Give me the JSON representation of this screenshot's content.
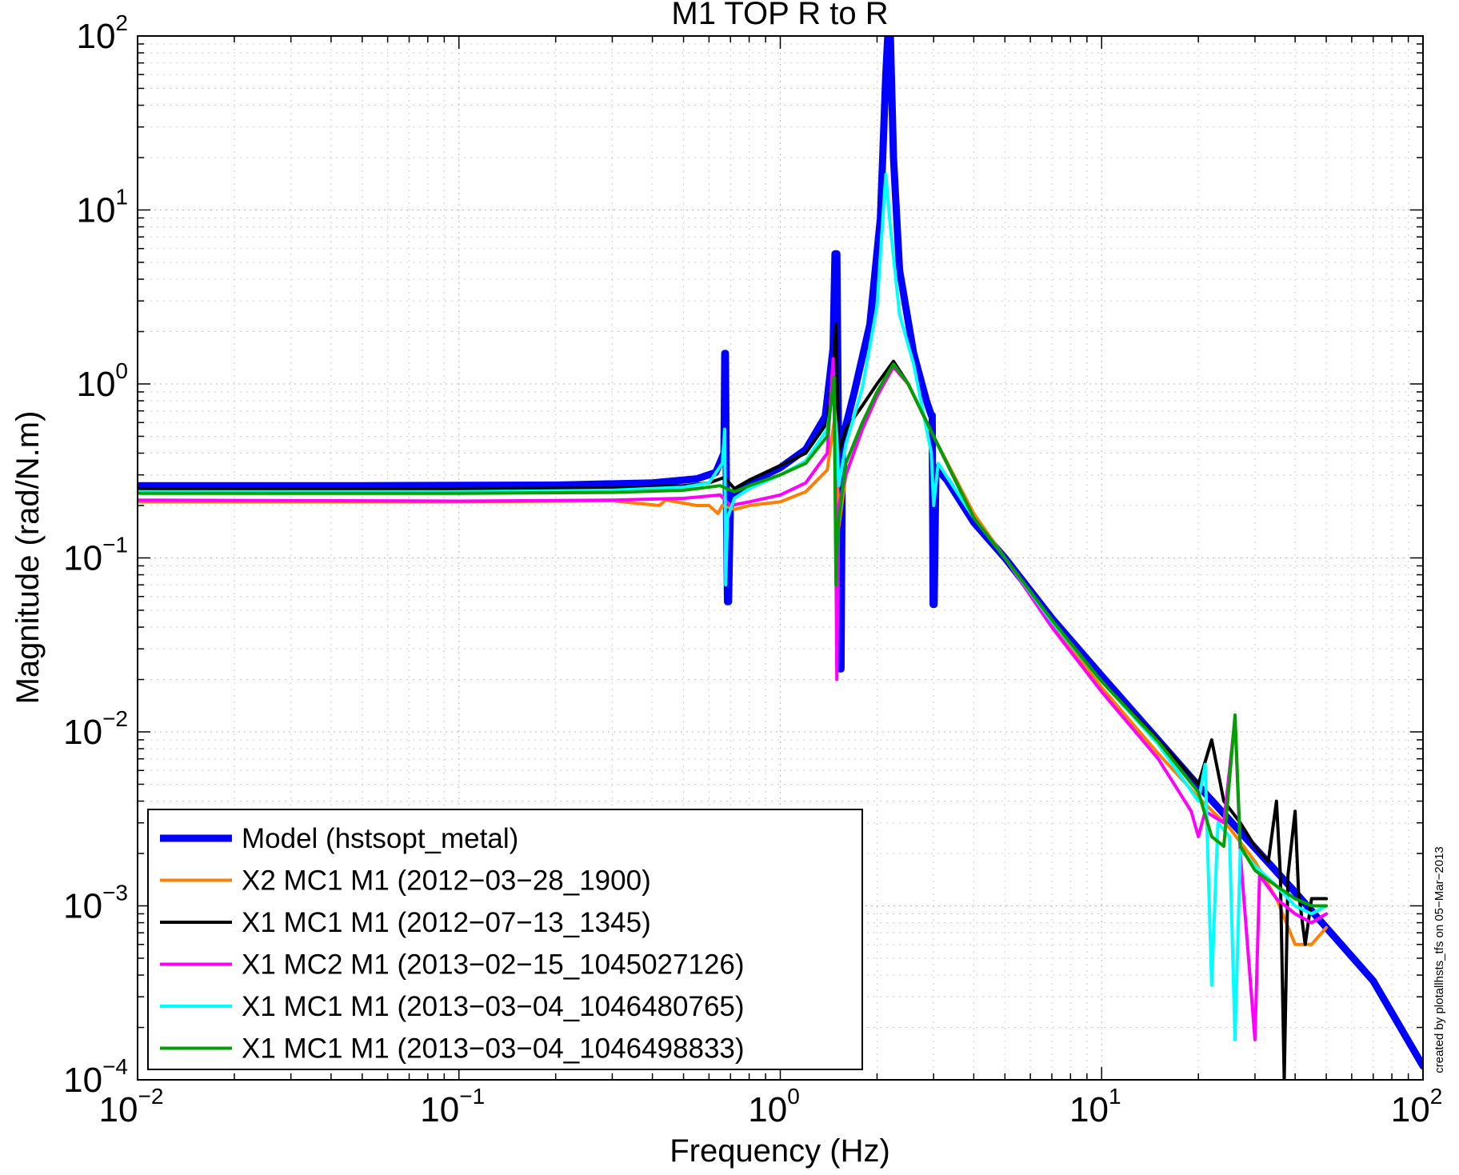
{
  "chart_data": {
    "type": "line",
    "title": "M1 TOP R to R",
    "xlabel": "Frequency (Hz)",
    "ylabel": "Magnitude (rad/N.m)",
    "xscale": "log",
    "yscale": "log",
    "xlim": [
      0.01,
      100
    ],
    "ylim": [
      0.0001,
      100
    ],
    "grid": true,
    "legend_position": "bottom-left",
    "credit": "created by plotallhsts_tfs on 05−Mar−2013",
    "x_ticks": [
      {
        "base": "10",
        "exp": "−2",
        "value": 0.01
      },
      {
        "base": "10",
        "exp": "−1",
        "value": 0.1
      },
      {
        "base": "10",
        "exp": "0",
        "value": 1
      },
      {
        "base": "10",
        "exp": "1",
        "value": 10
      },
      {
        "base": "10",
        "exp": "2",
        "value": 100
      }
    ],
    "y_ticks": [
      {
        "base": "10",
        "exp": "−4",
        "value": 0.0001
      },
      {
        "base": "10",
        "exp": "−3",
        "value": 0.001
      },
      {
        "base": "10",
        "exp": "−2",
        "value": 0.01
      },
      {
        "base": "10",
        "exp": "−1",
        "value": 0.1
      },
      {
        "base": "10",
        "exp": "0",
        "value": 1
      },
      {
        "base": "10",
        "exp": "1",
        "value": 10
      },
      {
        "base": "10",
        "exp": "2",
        "value": 100
      }
    ],
    "series": [
      {
        "name": "Model (hstsopt_metal)",
        "color": "#0000ff",
        "line_width": "thick",
        "points": [
          [
            0.01,
            0.26
          ],
          [
            0.05,
            0.26
          ],
          [
            0.2,
            0.262
          ],
          [
            0.4,
            0.27
          ],
          [
            0.55,
            0.285
          ],
          [
            0.63,
            0.31
          ],
          [
            0.668,
            0.4
          ],
          [
            0.672,
            1.5
          ],
          [
            0.675,
            1.5
          ],
          [
            0.68,
            0.2
          ],
          [
            0.685,
            0.056
          ],
          [
            0.69,
            0.056
          ],
          [
            0.7,
            0.23
          ],
          [
            0.8,
            0.27
          ],
          [
            1.0,
            0.33
          ],
          [
            1.2,
            0.42
          ],
          [
            1.38,
            0.65
          ],
          [
            1.46,
            1.6
          ],
          [
            1.48,
            5.6
          ],
          [
            1.5,
            5.6
          ],
          [
            1.52,
            0.3
          ],
          [
            1.535,
            0.023
          ],
          [
            1.545,
            0.023
          ],
          [
            1.56,
            0.48
          ],
          [
            1.7,
            0.9
          ],
          [
            1.9,
            2.2
          ],
          [
            2.05,
            9
          ],
          [
            2.13,
            60
          ],
          [
            2.16,
            100
          ],
          [
            2.2,
            100
          ],
          [
            2.25,
            20
          ],
          [
            2.35,
            4.5
          ],
          [
            2.6,
            1.5
          ],
          [
            2.85,
            0.8
          ],
          [
            2.95,
            0.66
          ],
          [
            2.97,
            0.66
          ],
          [
            2.99,
            0.054
          ],
          [
            3.01,
            0.054
          ],
          [
            3.05,
            0.33
          ],
          [
            3.3,
            0.28
          ],
          [
            4,
            0.16
          ],
          [
            5,
            0.1
          ],
          [
            7,
            0.045
          ],
          [
            10,
            0.021
          ],
          [
            20,
            0.0049
          ],
          [
            40,
            0.0012
          ],
          [
            70,
            0.00037
          ],
          [
            100,
            0.00012
          ]
        ]
      },
      {
        "name": "X2 MC1  M1 (2012−03−28_1900)",
        "color": "#ff7f00",
        "line_width": "normal",
        "points": [
          [
            0.01,
            0.21
          ],
          [
            0.1,
            0.21
          ],
          [
            0.3,
            0.213
          ],
          [
            0.42,
            0.2
          ],
          [
            0.44,
            0.215
          ],
          [
            0.55,
            0.2
          ],
          [
            0.6,
            0.2
          ],
          [
            0.64,
            0.18
          ],
          [
            0.66,
            0.2
          ],
          [
            0.72,
            0.19
          ],
          [
            0.8,
            0.2
          ],
          [
            1.0,
            0.21
          ],
          [
            1.2,
            0.24
          ],
          [
            1.4,
            0.32
          ],
          [
            1.47,
            0.6
          ],
          [
            1.49,
            0.7
          ],
          [
            1.52,
            0.15
          ],
          [
            1.6,
            0.3
          ],
          [
            1.8,
            0.55
          ],
          [
            2.0,
            0.85
          ],
          [
            2.25,
            1.3
          ],
          [
            2.5,
            1.0
          ],
          [
            3,
            0.5
          ],
          [
            4,
            0.18
          ],
          [
            5,
            0.1
          ],
          [
            7,
            0.042
          ],
          [
            10,
            0.018
          ],
          [
            15,
            0.0075
          ],
          [
            20,
            0.0042
          ],
          [
            25,
            0.0028
          ],
          [
            30,
            0.0018
          ],
          [
            35,
            0.0011
          ],
          [
            40,
            0.0006
          ],
          [
            45,
            0.0006
          ],
          [
            50,
            0.00075
          ]
        ]
      },
      {
        "name": "X1 MC1  M1 (2012−07−13_1345)",
        "color": "#000000",
        "line_width": "normal",
        "points": [
          [
            0.01,
            0.25
          ],
          [
            0.05,
            0.248
          ],
          [
            0.1,
            0.25
          ],
          [
            0.3,
            0.252
          ],
          [
            0.5,
            0.26
          ],
          [
            0.6,
            0.27
          ],
          [
            0.67,
            0.29
          ],
          [
            0.72,
            0.25
          ],
          [
            0.8,
            0.28
          ],
          [
            1.0,
            0.34
          ],
          [
            1.2,
            0.4
          ],
          [
            1.4,
            0.6
          ],
          [
            1.47,
            1.4
          ],
          [
            1.49,
            2.2
          ],
          [
            1.52,
            0.4
          ],
          [
            1.6,
            0.55
          ],
          [
            1.8,
            0.75
          ],
          [
            2.0,
            1.0
          ],
          [
            2.25,
            1.35
          ],
          [
            2.5,
            1.0
          ],
          [
            3,
            0.5
          ],
          [
            4,
            0.17
          ],
          [
            5,
            0.1
          ],
          [
            7,
            0.043
          ],
          [
            10,
            0.0195
          ],
          [
            15,
            0.009
          ],
          [
            20,
            0.005
          ],
          [
            22,
            0.009
          ],
          [
            24,
            0.004
          ],
          [
            27,
            0.003
          ],
          [
            30,
            0.0022
          ],
          [
            33,
            0.0018
          ],
          [
            35,
            0.004
          ],
          [
            36,
            0.0015
          ],
          [
            37,
            0.0001
          ],
          [
            38,
            0.0015
          ],
          [
            40,
            0.0035
          ],
          [
            41,
            0.0012
          ],
          [
            43,
            0.0006
          ],
          [
            45,
            0.0011
          ],
          [
            50,
            0.0011
          ]
        ]
      },
      {
        "name": "X1 MC2  M1 (2013−02−15_1045027126)",
        "color": "#ff00ff",
        "line_width": "normal",
        "points": [
          [
            0.01,
            0.215
          ],
          [
            0.1,
            0.212
          ],
          [
            0.3,
            0.215
          ],
          [
            0.5,
            0.22
          ],
          [
            0.65,
            0.23
          ],
          [
            0.7,
            0.2
          ],
          [
            0.8,
            0.21
          ],
          [
            1.0,
            0.23
          ],
          [
            1.2,
            0.27
          ],
          [
            1.4,
            0.4
          ],
          [
            1.46,
            1.4
          ],
          [
            1.48,
            0.5
          ],
          [
            1.5,
            0.02
          ],
          [
            1.52,
            0.2
          ],
          [
            1.6,
            0.3
          ],
          [
            1.8,
            0.55
          ],
          [
            2.0,
            0.85
          ],
          [
            2.25,
            1.25
          ],
          [
            2.5,
            1.0
          ],
          [
            3,
            0.5
          ],
          [
            4,
            0.17
          ],
          [
            5,
            0.1
          ],
          [
            7,
            0.04
          ],
          [
            10,
            0.017
          ],
          [
            15,
            0.007
          ],
          [
            19,
            0.0035
          ],
          [
            20,
            0.0025
          ],
          [
            21,
            0.0035
          ],
          [
            24,
            0.003
          ],
          [
            26,
            0.012
          ],
          [
            27,
            0.002
          ],
          [
            30,
            0.00017
          ],
          [
            31,
            0.0015
          ],
          [
            35,
            0.0011
          ],
          [
            40,
            0.0009
          ],
          [
            45,
            0.0008
          ],
          [
            50,
            0.0009
          ]
        ]
      },
      {
        "name": "X1 MC1  M1 (2013−03−04_1046480765)",
        "color": "#00ffff",
        "line_width": "normal",
        "points": [
          [
            0.01,
            0.24
          ],
          [
            0.1,
            0.24
          ],
          [
            0.3,
            0.245
          ],
          [
            0.5,
            0.255
          ],
          [
            0.6,
            0.27
          ],
          [
            0.66,
            0.35
          ],
          [
            0.672,
            0.55
          ],
          [
            0.676,
            0.07
          ],
          [
            0.685,
            0.17
          ],
          [
            0.72,
            0.22
          ],
          [
            0.8,
            0.25
          ],
          [
            1.0,
            0.3
          ],
          [
            1.2,
            0.36
          ],
          [
            1.4,
            0.55
          ],
          [
            1.46,
            0.9
          ],
          [
            1.5,
            0.5
          ],
          [
            1.52,
            0.26
          ],
          [
            1.6,
            0.45
          ],
          [
            1.8,
            0.95
          ],
          [
            2.0,
            2.8
          ],
          [
            2.13,
            16
          ],
          [
            2.2,
            8
          ],
          [
            2.35,
            2.5
          ],
          [
            2.6,
            1.3
          ],
          [
            2.95,
            0.4
          ],
          [
            3.0,
            0.2
          ],
          [
            3.1,
            0.35
          ],
          [
            4,
            0.17
          ],
          [
            5,
            0.1
          ],
          [
            7,
            0.043
          ],
          [
            10,
            0.0195
          ],
          [
            15,
            0.0085
          ],
          [
            20,
            0.004
          ],
          [
            21,
            0.0065
          ],
          [
            22,
            0.00035
          ],
          [
            23,
            0.003
          ],
          [
            25,
            0.0025
          ],
          [
            26,
            0.00017
          ],
          [
            27,
            0.0021
          ],
          [
            30,
            0.0017
          ],
          [
            35,
            0.0013
          ],
          [
            40,
            0.001
          ],
          [
            45,
            0.0009
          ],
          [
            50,
            0.001
          ]
        ]
      },
      {
        "name": "X1 MC1  M1 (2013−03−04_1046498833)",
        "color": "#00a000",
        "line_width": "normal",
        "points": [
          [
            0.01,
            0.235
          ],
          [
            0.1,
            0.235
          ],
          [
            0.3,
            0.238
          ],
          [
            0.5,
            0.245
          ],
          [
            0.65,
            0.26
          ],
          [
            0.72,
            0.24
          ],
          [
            0.8,
            0.26
          ],
          [
            1.0,
            0.3
          ],
          [
            1.2,
            0.35
          ],
          [
            1.4,
            0.5
          ],
          [
            1.47,
            1.1
          ],
          [
            1.49,
            0.07
          ],
          [
            1.51,
            0.15
          ],
          [
            1.6,
            0.35
          ],
          [
            1.8,
            0.6
          ],
          [
            2.0,
            0.9
          ],
          [
            2.25,
            1.3
          ],
          [
            2.5,
            1.0
          ],
          [
            3,
            0.5
          ],
          [
            4,
            0.17
          ],
          [
            5,
            0.1
          ],
          [
            7,
            0.044
          ],
          [
            10,
            0.0195
          ],
          [
            15,
            0.0088
          ],
          [
            20,
            0.0045
          ],
          [
            22,
            0.0025
          ],
          [
            24,
            0.0022
          ],
          [
            26,
            0.0125
          ],
          [
            27,
            0.0022
          ],
          [
            30,
            0.0016
          ],
          [
            35,
            0.0013
          ],
          [
            40,
            0.0011
          ],
          [
            45,
            0.001
          ],
          [
            50,
            0.001
          ]
        ]
      }
    ]
  }
}
